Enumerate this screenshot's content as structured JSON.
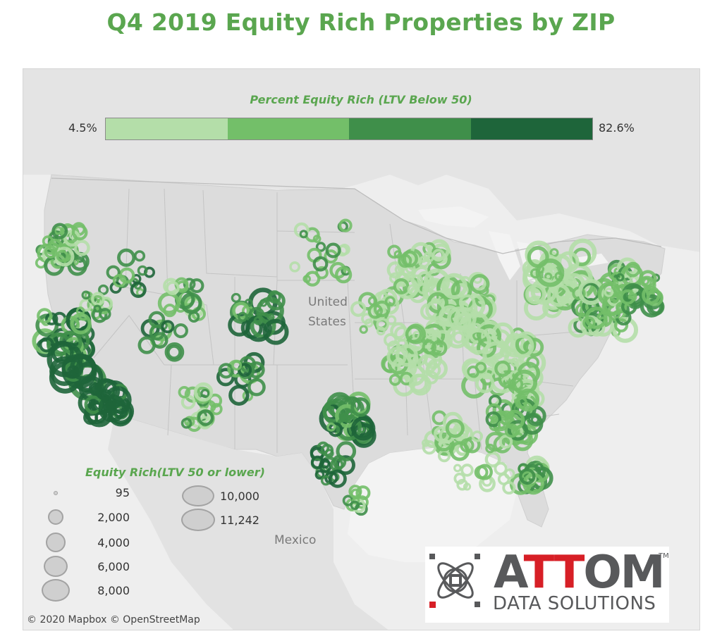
{
  "title": "Q4 2019 Equity Rich Properties by ZIP",
  "percent_legend": {
    "title": "Percent Equity Rich (LTV Below 50)",
    "min_label": "4.5%",
    "max_label": "82.6%",
    "ramp_colors": [
      "#b4dea9",
      "#73bf69",
      "#3f8f4a",
      "#1e653a"
    ]
  },
  "size_legend": {
    "title": "Equity Rich(LTV 50 or lower)",
    "entries": [
      {
        "label": "95",
        "value": 95
      },
      {
        "label": "2,000",
        "value": 2000
      },
      {
        "label": "4,000",
        "value": 4000
      },
      {
        "label": "6,000",
        "value": 6000
      },
      {
        "label": "8,000",
        "value": 8000
      },
      {
        "label": "10,000",
        "value": 10000
      },
      {
        "label": "11,242",
        "value": 11242
      }
    ]
  },
  "map": {
    "country_label_line1": "United",
    "country_label_line2": "States",
    "mexico_label": "Mexico",
    "attribution": "© 2020 Mapbox  © OpenStreetMap",
    "land_color": "#e2e2e2",
    "water_color": "#f5f5f5"
  },
  "logo": {
    "word_left": "A",
    "word_red": "TT",
    "word_right": "OM",
    "tm": "TM",
    "subtitle": "DATA SOLUTIONS",
    "brand_red": "#d71f26",
    "brand_gray": "#58595b"
  }
}
